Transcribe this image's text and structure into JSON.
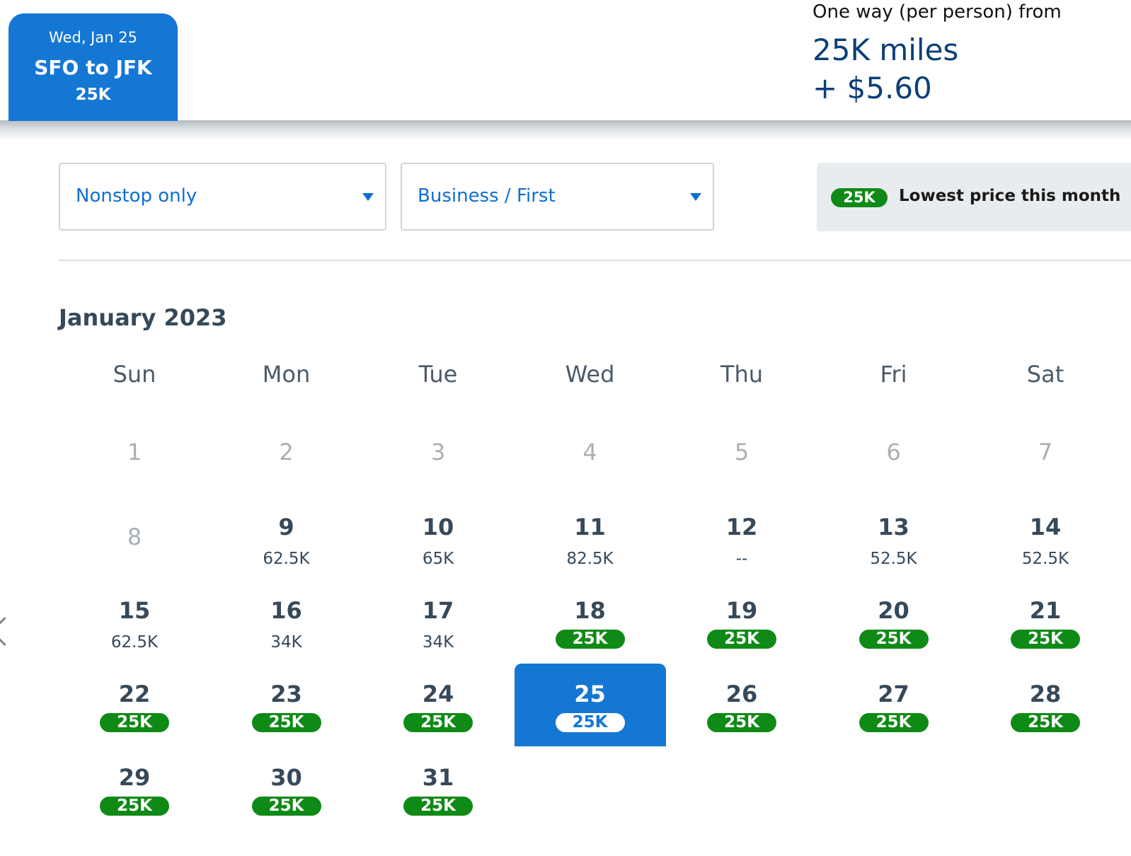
{
  "header": {
    "date_tab": {
      "date": "Wed, Jan 25",
      "route": "SFO to JFK",
      "price": "25K"
    },
    "fare": {
      "label": "One way (per person) from",
      "miles": "25K miles",
      "taxes": "+ $5.60"
    }
  },
  "filters": {
    "stops": {
      "value": "Nonstop only"
    },
    "cabin": {
      "value": "Business / First"
    }
  },
  "legend": {
    "pill": "25K",
    "text": "Lowest price this month"
  },
  "calendar": {
    "month": "January 2023",
    "weekdays": [
      "Sun",
      "Mon",
      "Tue",
      "Wed",
      "Thu",
      "Fri",
      "Sat"
    ],
    "weeks": [
      [
        {
          "day": "1"
        },
        {
          "day": "2"
        },
        {
          "day": "3"
        },
        {
          "day": "4"
        },
        {
          "day": "5"
        },
        {
          "day": "6"
        },
        {
          "day": "7"
        }
      ],
      [
        {
          "day": "8"
        },
        {
          "day": "9",
          "price": "62.5K"
        },
        {
          "day": "10",
          "price": "65K"
        },
        {
          "day": "11",
          "price": "82.5K"
        },
        {
          "day": "12",
          "price": "--"
        },
        {
          "day": "13",
          "price": "52.5K"
        },
        {
          "day": "14",
          "price": "52.5K"
        }
      ],
      [
        {
          "day": "15",
          "price": "62.5K"
        },
        {
          "day": "16",
          "price": "34K"
        },
        {
          "day": "17",
          "price": "34K"
        },
        {
          "day": "18",
          "price": "25K"
        },
        {
          "day": "19",
          "price": "25K"
        },
        {
          "day": "20",
          "price": "25K"
        },
        {
          "day": "21",
          "price": "25K"
        }
      ],
      [
        {
          "day": "22",
          "price": "25K"
        },
        {
          "day": "23",
          "price": "25K"
        },
        {
          "day": "24",
          "price": "25K"
        },
        {
          "day": "25",
          "price": "25K"
        },
        {
          "day": "26",
          "price": "25K"
        },
        {
          "day": "27",
          "price": "25K"
        },
        {
          "day": "28",
          "price": "25K"
        }
      ],
      [
        {
          "day": "29",
          "price": "25K"
        },
        {
          "day": "30",
          "price": "25K"
        },
        {
          "day": "31",
          "price": "25K"
        }
      ]
    ]
  },
  "icons": {
    "prev": "chevron-left-icon",
    "dropdown": "caret-down-icon"
  },
  "colors": {
    "primary": "#1477d4",
    "lowest_price": "#0f8a16",
    "fare_text": "#0b3f78"
  }
}
